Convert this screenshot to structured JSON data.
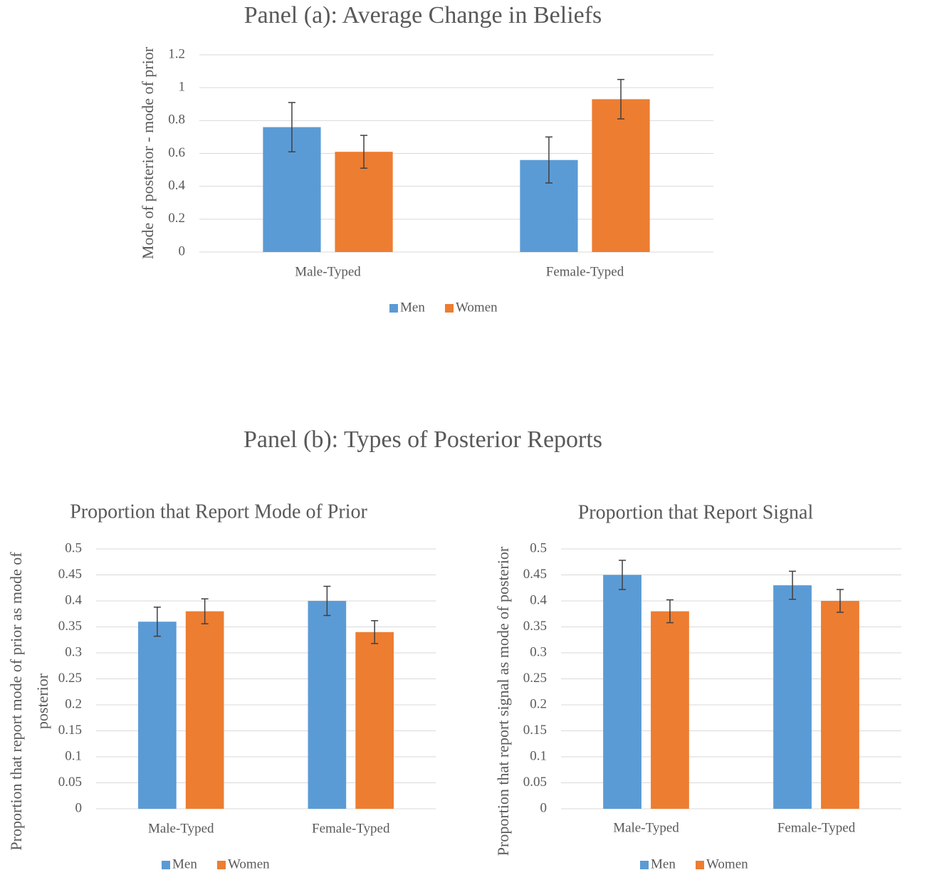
{
  "heading": "Panel (b): Types of Posterior Reports",
  "chart_data": [
    {
      "type": "bar",
      "title": "Panel (a): Average Change in Beliefs",
      "ylabel": "Mode of posterior - mode of prior",
      "categories": [
        "Male-Typed",
        "Female-Typed"
      ],
      "series": [
        {
          "name": "Men",
          "color": "#5b9bd5",
          "values": [
            0.76,
            0.56
          ],
          "errors": [
            0.15,
            0.14
          ]
        },
        {
          "name": "Women",
          "color": "#ed7d31",
          "values": [
            0.61,
            0.93
          ],
          "errors": [
            0.1,
            0.12
          ]
        }
      ],
      "ylim": [
        0,
        1.2
      ],
      "yticks": [
        0,
        0.2,
        0.4,
        0.6,
        0.8,
        1,
        1.2
      ],
      "grid": true,
      "legend": "bottom"
    },
    {
      "type": "bar",
      "title": "Proportion that Report Mode of Prior",
      "ylabel": "Proportion that report mode of prior as mode of posterior",
      "categories": [
        "Male-Typed",
        "Female-Typed"
      ],
      "series": [
        {
          "name": "Men",
          "color": "#5b9bd5",
          "values": [
            0.36,
            0.4
          ],
          "errors": [
            0.028,
            0.028
          ]
        },
        {
          "name": "Women",
          "color": "#ed7d31",
          "values": [
            0.38,
            0.34
          ],
          "errors": [
            0.024,
            0.022
          ]
        }
      ],
      "ylim": [
        0,
        0.5
      ],
      "yticks": [
        0,
        0.05,
        0.1,
        0.15,
        0.2,
        0.25,
        0.3,
        0.35,
        0.4,
        0.45,
        0.5
      ],
      "grid": true,
      "legend": "bottom"
    },
    {
      "type": "bar",
      "title": "Proportion that Report Signal",
      "ylabel": "Proportion that report signal as mode of posterior",
      "categories": [
        "Male-Typed",
        "Female-Typed"
      ],
      "series": [
        {
          "name": "Men",
          "color": "#5b9bd5",
          "values": [
            0.45,
            0.43
          ],
          "errors": [
            0.028,
            0.027
          ]
        },
        {
          "name": "Women",
          "color": "#ed7d31",
          "values": [
            0.38,
            0.4
          ],
          "errors": [
            0.022,
            0.022
          ]
        }
      ],
      "ylim": [
        0,
        0.5
      ],
      "yticks": [
        0,
        0.05,
        0.1,
        0.15,
        0.2,
        0.25,
        0.3,
        0.35,
        0.4,
        0.45,
        0.5
      ],
      "grid": true,
      "legend": "bottom"
    }
  ]
}
